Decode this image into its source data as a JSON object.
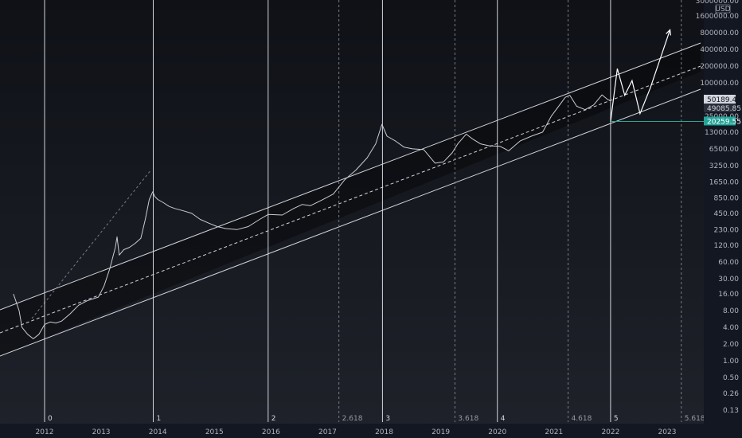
{
  "chart_data": {
    "type": "line",
    "ylog": true,
    "currency": "USD",
    "y_ticks": [
      "0.13",
      "0.26",
      "0.50",
      "1.00",
      "2.00",
      "4.00",
      "8.00",
      "16.00",
      "30.00",
      "60.00",
      "120.00",
      "230.00",
      "450.00",
      "850.00",
      "1650.00",
      "3250.00",
      "6500.00",
      "13000.00",
      "25000.00",
      "100000.00",
      "200000.00",
      "400000.00",
      "800000.00",
      "1600000.00",
      "3000000.00"
    ],
    "x_ticks": [
      "2012",
      "2013",
      "2014",
      "2015",
      "2016",
      "2017",
      "2018",
      "2019",
      "2020",
      "2021",
      "2022",
      "2023"
    ],
    "price_labels": [
      {
        "text": "50189.44",
        "value": 50189.44
      },
      {
        "text": "49085.85",
        "value": 49085.85
      },
      {
        "text": "20259.55",
        "value": 20259.55
      }
    ],
    "cycle_labels": [
      {
        "label": "0",
        "year": 2012.0
      },
      {
        "label": "1",
        "year": 2013.92
      },
      {
        "label": "2",
        "year": 2015.95
      },
      {
        "label": "3",
        "year": 2017.97
      },
      {
        "label": "4",
        "year": 2020.0
      },
      {
        "label": "5",
        "year": 2022.0
      }
    ],
    "fib_labels": [
      {
        "label": "2.618",
        "year": 2017.2
      },
      {
        "label": "3.618",
        "year": 2019.25
      },
      {
        "label": "4.618",
        "year": 2021.25
      },
      {
        "label": "5.618",
        "year": 2023.25
      }
    ],
    "series": [
      {
        "x": [
          2011.45,
          2011.55,
          2011.6,
          2011.7,
          2011.8,
          2011.9,
          2012.0,
          2012.1,
          2012.2,
          2012.3,
          2012.45,
          2012.6,
          2012.75,
          2012.85,
          2012.95,
          2013.05,
          2013.15,
          2013.25,
          2013.28,
          2013.32,
          2013.4,
          2013.5,
          2013.6,
          2013.7,
          2013.78,
          2013.85,
          2013.91,
          2013.95,
          2014.0,
          2014.1,
          2014.2,
          2014.3,
          2014.45,
          2014.6,
          2014.75,
          2014.9,
          2015.05,
          2015.2,
          2015.4,
          2015.6,
          2015.8,
          2015.95,
          2016.2,
          2016.4,
          2016.55,
          2016.7,
          2016.9,
          2017.1,
          2017.3,
          2017.5,
          2017.7,
          2017.85,
          2017.96,
          2018.05,
          2018.2,
          2018.35,
          2018.5,
          2018.7,
          2018.9,
          2019.05,
          2019.2,
          2019.3,
          2019.45,
          2019.55,
          2019.7,
          2019.85,
          2020.05,
          2020.2,
          2020.4,
          2020.6,
          2020.8,
          2020.95,
          2021.1,
          2021.2,
          2021.28,
          2021.4,
          2021.55,
          2021.7,
          2021.85,
          2021.95,
          2022.0
        ],
        "y": [
          16,
          8,
          4,
          3,
          2.5,
          3,
          4.5,
          5,
          4.8,
          5.2,
          7,
          10,
          12,
          13,
          14,
          22,
          45,
          110,
          170,
          80,
          100,
          110,
          130,
          160,
          350,
          800,
          1100,
          900,
          800,
          700,
          600,
          550,
          500,
          450,
          350,
          300,
          260,
          240,
          230,
          260,
          350,
          430,
          420,
          550,
          650,
          620,
          780,
          1000,
          1800,
          2700,
          4500,
          8000,
          18000,
          11000,
          9000,
          7000,
          6500,
          6300,
          3600,
          3800,
          5500,
          8000,
          12000,
          10000,
          8000,
          7400,
          7200,
          6000,
          9000,
          11000,
          13000,
          25000,
          40000,
          55000,
          60000,
          38000,
          33000,
          40000,
          61000,
          50000,
          48000
        ]
      }
    ],
    "projection": {
      "x": [
        2022.0,
        2022.12,
        2022.25,
        2022.38,
        2022.52,
        2022.7,
        2023.05
      ],
      "y": [
        20000,
        180000,
        60000,
        110000,
        28000,
        80000,
        900000
      ]
    }
  }
}
